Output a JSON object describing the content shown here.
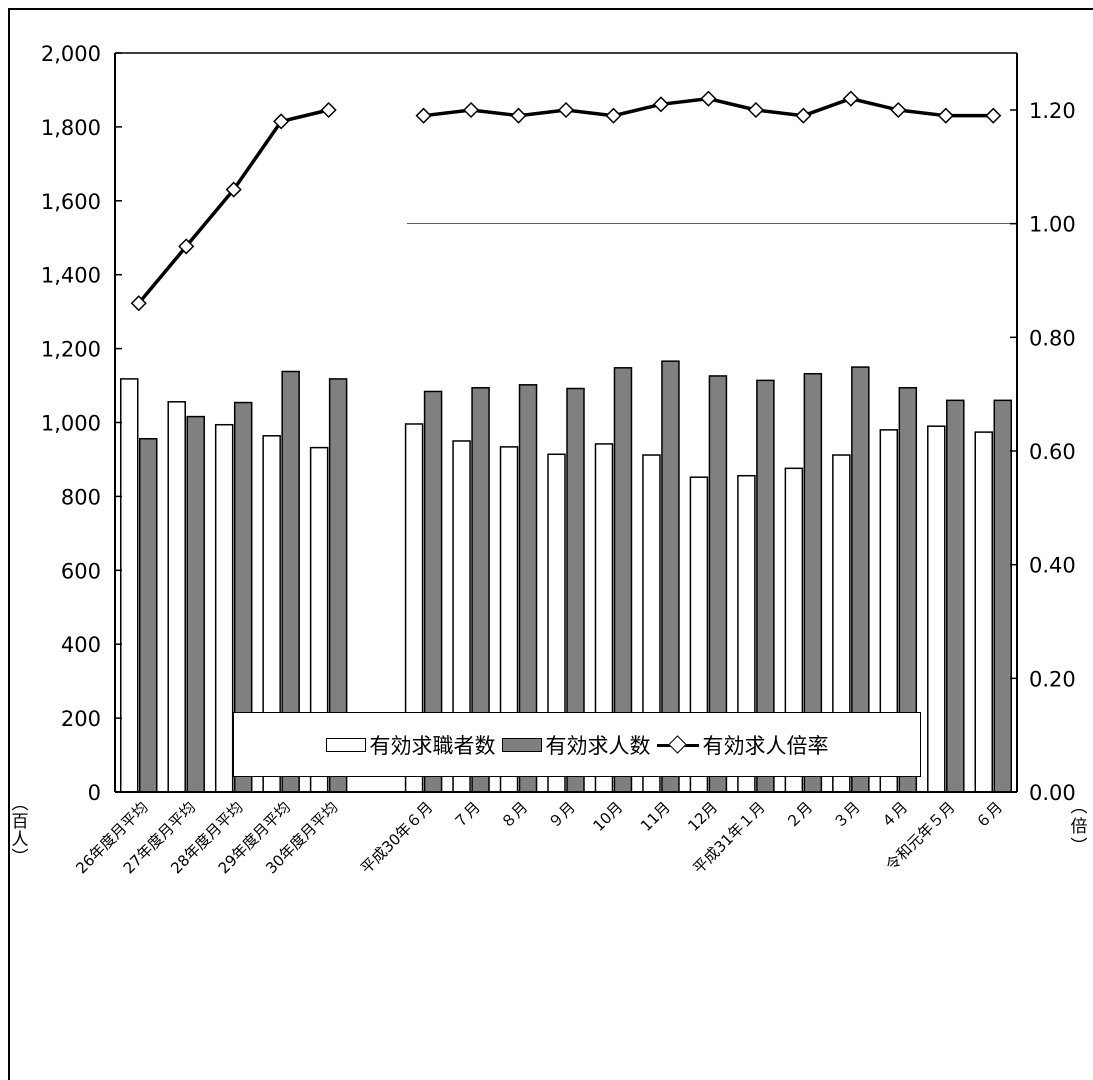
{
  "chart_data": {
    "type": "bar",
    "categories": [
      "26年度月平均",
      "27年度月平均",
      "28年度月平均",
      "29年度月平均",
      "30年度月平均",
      "",
      "平成30年６月",
      "７月",
      "８月",
      "９月",
      "10月",
      "11月",
      "12月",
      "平成31年１月",
      "２月",
      "３月",
      "４月",
      "令和元年５月",
      "６月"
    ],
    "series": [
      {
        "name": "有効求職者数",
        "type": "bar",
        "axis": "left",
        "color": "#ffffff",
        "values": [
          1118,
          1056,
          994,
          964,
          932,
          null,
          996,
          950,
          934,
          914,
          942,
          912,
          852,
          856,
          876,
          912,
          980,
          990,
          974
        ]
      },
      {
        "name": "有効求人数",
        "type": "bar",
        "axis": "left",
        "color": "#808080",
        "values": [
          956,
          1016,
          1054,
          1138,
          1118,
          null,
          1084,
          1094,
          1102,
          1092,
          1148,
          1166,
          1126,
          1114,
          1132,
          1150,
          1094,
          1060,
          1060
        ]
      },
      {
        "name": "有効求人倍率",
        "type": "line",
        "axis": "right",
        "color": "#000000",
        "values": [
          0.86,
          0.96,
          1.06,
          1.18,
          1.2,
          null,
          1.19,
          1.2,
          1.19,
          1.2,
          1.19,
          1.21,
          1.22,
          1.2,
          1.19,
          1.22,
          1.2,
          1.19,
          1.19
        ]
      }
    ],
    "left_ticks": [
      "0",
      "200",
      "400",
      "600",
      "800",
      "1,000",
      "1,200",
      "1,400",
      "1,600",
      "1,800",
      "2,000"
    ],
    "left_range": [
      0,
      2000
    ],
    "right_ticks": [
      "0.00",
      "0.20",
      "0.40",
      "0.60",
      "0.80",
      "1.00",
      "1.20"
    ],
    "right_range": [
      0,
      1.2
    ],
    "left_unit": [
      "百",
      "人"
    ],
    "right_unit": [
      "倍"
    ],
    "reference_line": {
      "axis": "right",
      "value": 1.0,
      "from_category": 6
    },
    "legend_position": "bottom"
  }
}
